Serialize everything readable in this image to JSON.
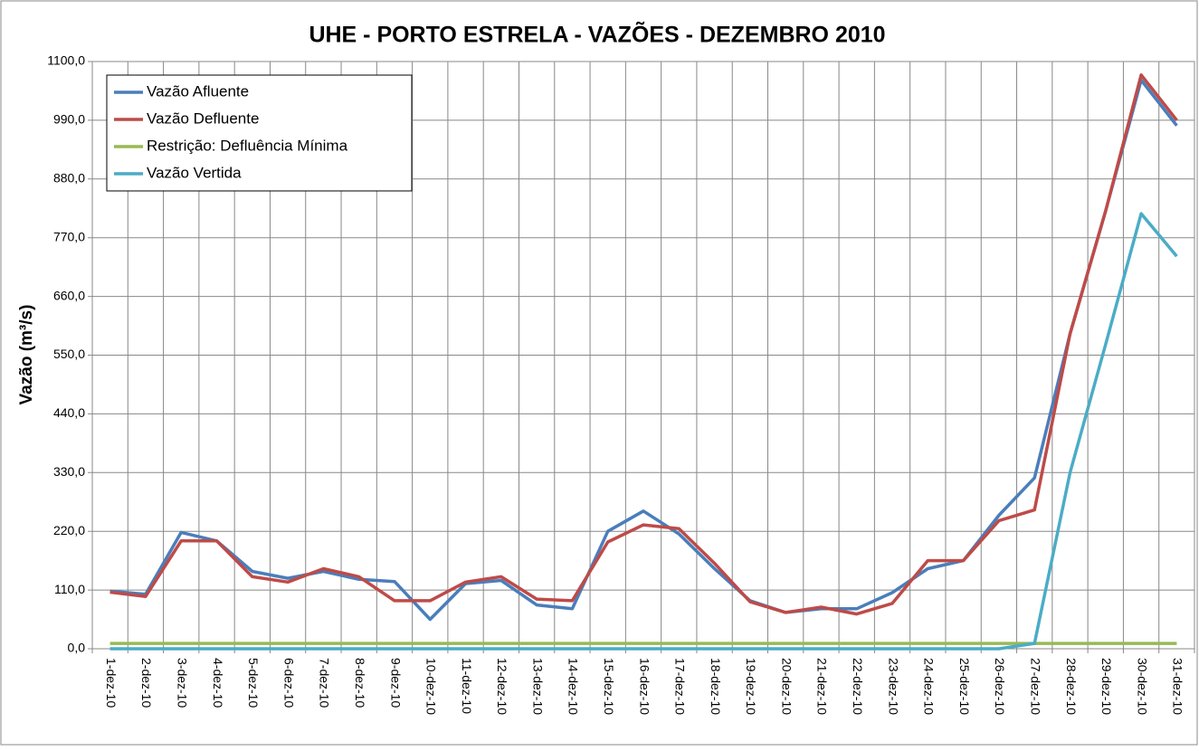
{
  "chart_data": {
    "type": "line",
    "title": "UHE - PORTO ESTRELA - VAZÕES - DEZEMBRO 2010",
    "y_label": "Vazão (m³/s)",
    "categories": [
      "1-dez-10",
      "2-dez-10",
      "3-dez-10",
      "4-dez-10",
      "5-dez-10",
      "6-dez-10",
      "7-dez-10",
      "8-dez-10",
      "9-dez-10",
      "10-dez-10",
      "11-dez-10",
      "12-dez-10",
      "13-dez-10",
      "14-dez-10",
      "15-dez-10",
      "16-dez-10",
      "17-dez-10",
      "18-dez-10",
      "19-dez-10",
      "20-dez-10",
      "21-dez-10",
      "22-dez-10",
      "23-dez-10",
      "24-dez-10",
      "25-dez-10",
      "26-dez-10",
      "27-dez-10",
      "28-dez-10",
      "29-dez-10",
      "30-dez-10",
      "31-dez-10"
    ],
    "series": [
      {
        "name": "Vazão Afluente",
        "color": "#4a7ebb",
        "values": [
          108,
          102,
          218,
          202,
          145,
          132,
          145,
          130,
          126,
          55,
          122,
          128,
          82,
          75,
          220,
          258,
          215,
          150,
          90,
          68,
          75,
          75,
          105,
          150,
          165,
          250,
          320,
          590,
          820,
          1065,
          980
        ]
      },
      {
        "name": "Vazão Defluente",
        "color": "#be4b48",
        "values": [
          106,
          98,
          202,
          202,
          135,
          125,
          150,
          135,
          90,
          90,
          125,
          135,
          93,
          90,
          200,
          232,
          225,
          160,
          88,
          68,
          78,
          65,
          85,
          165,
          165,
          240,
          260,
          590,
          820,
          1075,
          990
        ]
      },
      {
        "name": "Restrição: Defluência Mínima",
        "color": "#98b954",
        "values": [
          10,
          10,
          10,
          10,
          10,
          10,
          10,
          10,
          10,
          10,
          10,
          10,
          10,
          10,
          10,
          10,
          10,
          10,
          10,
          10,
          10,
          10,
          10,
          10,
          10,
          10,
          10,
          10,
          10,
          10,
          10
        ]
      },
      {
        "name": "Vazão Vertida",
        "color": "#4bacc6",
        "values": [
          0,
          0,
          0,
          0,
          0,
          0,
          0,
          0,
          0,
          0,
          0,
          0,
          0,
          0,
          0,
          0,
          0,
          0,
          0,
          0,
          0,
          0,
          0,
          0,
          0,
          0,
          10,
          330,
          570,
          815,
          735
        ]
      }
    ],
    "ylim": [
      0,
      1100
    ],
    "yticks": [
      {
        "value": 0,
        "label": "0,0"
      },
      {
        "value": 110,
        "label": "110,0"
      },
      {
        "value": 220,
        "label": "220,0"
      },
      {
        "value": 330,
        "label": "330,0"
      },
      {
        "value": 440,
        "label": "440,0"
      },
      {
        "value": 550,
        "label": "550,0"
      },
      {
        "value": 660,
        "label": "660,0"
      },
      {
        "value": 770,
        "label": "770,0"
      },
      {
        "value": 880,
        "label": "880,0"
      },
      {
        "value": 990,
        "label": "990,0"
      },
      {
        "value": 1100,
        "label": "1100,0"
      }
    ],
    "grid": true,
    "legend": "top-left"
  }
}
